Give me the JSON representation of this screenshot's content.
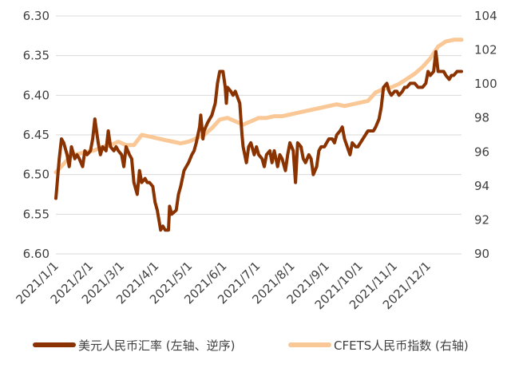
{
  "chart_data": {
    "type": "line",
    "left_axis": {
      "ylim": [
        6.3,
        6.6
      ],
      "ticks": [
        "6.30",
        "6.35",
        "6.40",
        "6.45",
        "6.50",
        "6.55",
        "6.60"
      ],
      "reversed": true
    },
    "right_axis": {
      "ylim": [
        90,
        104
      ],
      "ticks": [
        "104",
        "102",
        "100",
        "98",
        "96",
        "94",
        "92",
        "90"
      ]
    },
    "x_ticks": [
      "2021/1/1",
      "2021/2/1",
      "2021/3/1",
      "2021/4/1",
      "2021/5/1",
      "2021/6/1",
      "2021/7/1",
      "2021/8/1",
      "2021/9/1",
      "2021/10/1",
      "2021/11/1",
      "2021/12/1"
    ],
    "grid": true,
    "legend_position": "bottom",
    "colors": {
      "usdcny": "#8B3300",
      "cfets": "#FAC896",
      "grid": "#d9d9d9",
      "text": "#404040"
    },
    "series": [
      {
        "name": "美元人民币汇率 (左轴、逆序)",
        "axis": "left",
        "points": [
          [
            "2021-01-01",
            6.53
          ],
          [
            "2021-01-04",
            6.48
          ],
          [
            "2021-01-06",
            6.455
          ],
          [
            "2021-01-08",
            6.46
          ],
          [
            "2021-01-11",
            6.475
          ],
          [
            "2021-01-13",
            6.49
          ],
          [
            "2021-01-15",
            6.465
          ],
          [
            "2021-01-18",
            6.48
          ],
          [
            "2021-01-20",
            6.475
          ],
          [
            "2021-01-22",
            6.48
          ],
          [
            "2021-01-25",
            6.49
          ],
          [
            "2021-01-27",
            6.47
          ],
          [
            "2021-01-29",
            6.475
          ],
          [
            "2021-02-01",
            6.47
          ],
          [
            "2021-02-03",
            6.455
          ],
          [
            "2021-02-05",
            6.43
          ],
          [
            "2021-02-08",
            6.46
          ],
          [
            "2021-02-10",
            6.475
          ],
          [
            "2021-02-12",
            6.465
          ],
          [
            "2021-02-15",
            6.47
          ],
          [
            "2021-02-17",
            6.445
          ],
          [
            "2021-02-19",
            6.465
          ],
          [
            "2021-02-22",
            6.47
          ],
          [
            "2021-02-24",
            6.465
          ],
          [
            "2021-02-26",
            6.47
          ],
          [
            "2021-03-01",
            6.475
          ],
          [
            "2021-03-03",
            6.49
          ],
          [
            "2021-03-05",
            6.465
          ],
          [
            "2021-03-08",
            6.475
          ],
          [
            "2021-03-10",
            6.48
          ],
          [
            "2021-03-12",
            6.51
          ],
          [
            "2021-03-15",
            6.525
          ],
          [
            "2021-03-17",
            6.495
          ],
          [
            "2021-03-19",
            6.51
          ],
          [
            "2021-03-22",
            6.505
          ],
          [
            "2021-03-24",
            6.51
          ],
          [
            "2021-03-26",
            6.51
          ],
          [
            "2021-03-29",
            6.515
          ],
          [
            "2021-03-31",
            6.535
          ],
          [
            "2021-04-02",
            6.545
          ],
          [
            "2021-04-05",
            6.57
          ],
          [
            "2021-04-07",
            6.565
          ],
          [
            "2021-04-09",
            6.57
          ],
          [
            "2021-04-12",
            6.57
          ],
          [
            "2021-04-13",
            6.54
          ],
          [
            "2021-04-15",
            6.55
          ],
          [
            "2021-04-19",
            6.545
          ],
          [
            "2021-04-21",
            6.525
          ],
          [
            "2021-04-23",
            6.515
          ],
          [
            "2021-04-26",
            6.495
          ],
          [
            "2021-04-28",
            6.49
          ],
          [
            "2021-04-30",
            6.485
          ],
          [
            "2021-05-03",
            6.475
          ],
          [
            "2021-05-05",
            6.47
          ],
          [
            "2021-05-07",
            6.46
          ],
          [
            "2021-05-10",
            6.44
          ],
          [
            "2021-05-11",
            6.425
          ],
          [
            "2021-05-13",
            6.455
          ],
          [
            "2021-05-14",
            6.445
          ],
          [
            "2021-05-17",
            6.435
          ],
          [
            "2021-05-19",
            6.43
          ],
          [
            "2021-05-21",
            6.425
          ],
          [
            "2021-05-24",
            6.41
          ],
          [
            "2021-05-26",
            6.385
          ],
          [
            "2021-05-28",
            6.37
          ],
          [
            "2021-05-31",
            6.37
          ],
          [
            "2021-06-02",
            6.39
          ],
          [
            "2021-06-03",
            6.41
          ],
          [
            "2021-06-04",
            6.39
          ],
          [
            "2021-06-07",
            6.395
          ],
          [
            "2021-06-09",
            6.4
          ],
          [
            "2021-06-11",
            6.395
          ],
          [
            "2021-06-15",
            6.41
          ],
          [
            "2021-06-17",
            6.45
          ],
          [
            "2021-06-18",
            6.465
          ],
          [
            "2021-06-21",
            6.485
          ],
          [
            "2021-06-23",
            6.465
          ],
          [
            "2021-06-25",
            6.46
          ],
          [
            "2021-06-28",
            6.475
          ],
          [
            "2021-06-30",
            6.465
          ],
          [
            "2021-07-02",
            6.475
          ],
          [
            "2021-07-05",
            6.48
          ],
          [
            "2021-07-07",
            6.49
          ],
          [
            "2021-07-09",
            6.475
          ],
          [
            "2021-07-12",
            6.47
          ],
          [
            "2021-07-14",
            6.485
          ],
          [
            "2021-07-16",
            6.47
          ],
          [
            "2021-07-19",
            6.49
          ],
          [
            "2021-07-21",
            6.475
          ],
          [
            "2021-07-23",
            6.48
          ],
          [
            "2021-07-26",
            6.495
          ],
          [
            "2021-07-28",
            6.475
          ],
          [
            "2021-07-30",
            6.46
          ],
          [
            "2021-08-02",
            6.47
          ],
          [
            "2021-08-04",
            6.51
          ],
          [
            "2021-08-06",
            6.46
          ],
          [
            "2021-08-09",
            6.465
          ],
          [
            "2021-08-11",
            6.48
          ],
          [
            "2021-08-13",
            6.485
          ],
          [
            "2021-08-16",
            6.475
          ],
          [
            "2021-08-18",
            6.48
          ],
          [
            "2021-08-20",
            6.5
          ],
          [
            "2021-08-23",
            6.49
          ],
          [
            "2021-08-25",
            6.47
          ],
          [
            "2021-08-27",
            6.465
          ],
          [
            "2021-08-30",
            6.465
          ],
          [
            "2021-09-01",
            6.46
          ],
          [
            "2021-09-03",
            6.455
          ],
          [
            "2021-09-06",
            6.455
          ],
          [
            "2021-09-08",
            6.46
          ],
          [
            "2021-09-10",
            6.45
          ],
          [
            "2021-09-13",
            6.445
          ],
          [
            "2021-09-15",
            6.44
          ],
          [
            "2021-09-17",
            6.455
          ],
          [
            "2021-09-22",
            6.475
          ],
          [
            "2021-09-24",
            6.46
          ],
          [
            "2021-09-27",
            6.465
          ],
          [
            "2021-09-29",
            6.465
          ],
          [
            "2021-10-08",
            6.445
          ],
          [
            "2021-10-11",
            6.445
          ],
          [
            "2021-10-13",
            6.445
          ],
          [
            "2021-10-15",
            6.44
          ],
          [
            "2021-10-18",
            6.43
          ],
          [
            "2021-10-20",
            6.415
          ],
          [
            "2021-10-22",
            6.39
          ],
          [
            "2021-10-25",
            6.385
          ],
          [
            "2021-10-27",
            6.395
          ],
          [
            "2021-10-29",
            6.4
          ],
          [
            "2021-11-01",
            6.395
          ],
          [
            "2021-11-03",
            6.395
          ],
          [
            "2021-11-05",
            6.4
          ],
          [
            "2021-11-08",
            6.395
          ],
          [
            "2021-11-10",
            6.39
          ],
          [
            "2021-11-12",
            6.39
          ],
          [
            "2021-11-15",
            6.385
          ],
          [
            "2021-11-17",
            6.385
          ],
          [
            "2021-11-19",
            6.385
          ],
          [
            "2021-11-22",
            6.39
          ],
          [
            "2021-11-24",
            6.39
          ],
          [
            "2021-11-26",
            6.39
          ],
          [
            "2021-11-29",
            6.385
          ],
          [
            "2021-12-01",
            6.37
          ],
          [
            "2021-12-03",
            6.375
          ],
          [
            "2021-12-06",
            6.37
          ],
          [
            "2021-12-08",
            6.345
          ],
          [
            "2021-12-10",
            6.37
          ],
          [
            "2021-12-13",
            6.37
          ],
          [
            "2021-12-15",
            6.37
          ],
          [
            "2021-12-17",
            6.375
          ],
          [
            "2021-12-20",
            6.38
          ],
          [
            "2021-12-22",
            6.375
          ],
          [
            "2021-12-24",
            6.375
          ],
          [
            "2021-12-27",
            6.37
          ],
          [
            "2021-12-31",
            6.37
          ]
        ]
      },
      {
        "name": "CFETS人民币指数 (右轴)",
        "axis": "right",
        "points": [
          [
            "2021-01-01",
            94.8
          ],
          [
            "2021-01-08",
            95.3
          ],
          [
            "2021-01-15",
            95.8
          ],
          [
            "2021-01-22",
            95.9
          ],
          [
            "2021-01-29",
            96.0
          ],
          [
            "2021-02-05",
            96.1
          ],
          [
            "2021-02-12",
            96.3
          ],
          [
            "2021-02-19",
            96.4
          ],
          [
            "2021-02-26",
            96.6
          ],
          [
            "2021-03-05",
            96.4
          ],
          [
            "2021-03-12",
            96.4
          ],
          [
            "2021-03-19",
            97.0
          ],
          [
            "2021-03-26",
            96.9
          ],
          [
            "2021-04-02",
            96.8
          ],
          [
            "2021-04-09",
            96.7
          ],
          [
            "2021-04-16",
            96.6
          ],
          [
            "2021-04-23",
            96.5
          ],
          [
            "2021-04-30",
            96.6
          ],
          [
            "2021-05-07",
            96.8
          ],
          [
            "2021-05-14",
            97.0
          ],
          [
            "2021-05-21",
            97.4
          ],
          [
            "2021-05-28",
            97.9
          ],
          [
            "2021-06-04",
            98.0
          ],
          [
            "2021-06-11",
            97.8
          ],
          [
            "2021-06-18",
            97.6
          ],
          [
            "2021-06-25",
            97.8
          ],
          [
            "2021-07-02",
            98.0
          ],
          [
            "2021-07-09",
            98.0
          ],
          [
            "2021-07-16",
            98.1
          ],
          [
            "2021-07-23",
            98.1
          ],
          [
            "2021-07-30",
            98.2
          ],
          [
            "2021-08-06",
            98.3
          ],
          [
            "2021-08-13",
            98.4
          ],
          [
            "2021-08-20",
            98.5
          ],
          [
            "2021-08-27",
            98.6
          ],
          [
            "2021-09-03",
            98.7
          ],
          [
            "2021-09-10",
            98.8
          ],
          [
            "2021-09-17",
            98.7
          ],
          [
            "2021-09-24",
            98.8
          ],
          [
            "2021-10-08",
            99.0
          ],
          [
            "2021-10-15",
            99.5
          ],
          [
            "2021-10-22",
            99.7
          ],
          [
            "2021-10-29",
            99.8
          ],
          [
            "2021-11-05",
            100.0
          ],
          [
            "2021-11-12",
            100.3
          ],
          [
            "2021-11-19",
            100.6
          ],
          [
            "2021-11-26",
            101.0
          ],
          [
            "2021-12-03",
            101.5
          ],
          [
            "2021-12-10",
            102.2
          ],
          [
            "2021-12-17",
            102.5
          ],
          [
            "2021-12-24",
            102.6
          ],
          [
            "2021-12-31",
            102.6
          ]
        ]
      }
    ]
  }
}
